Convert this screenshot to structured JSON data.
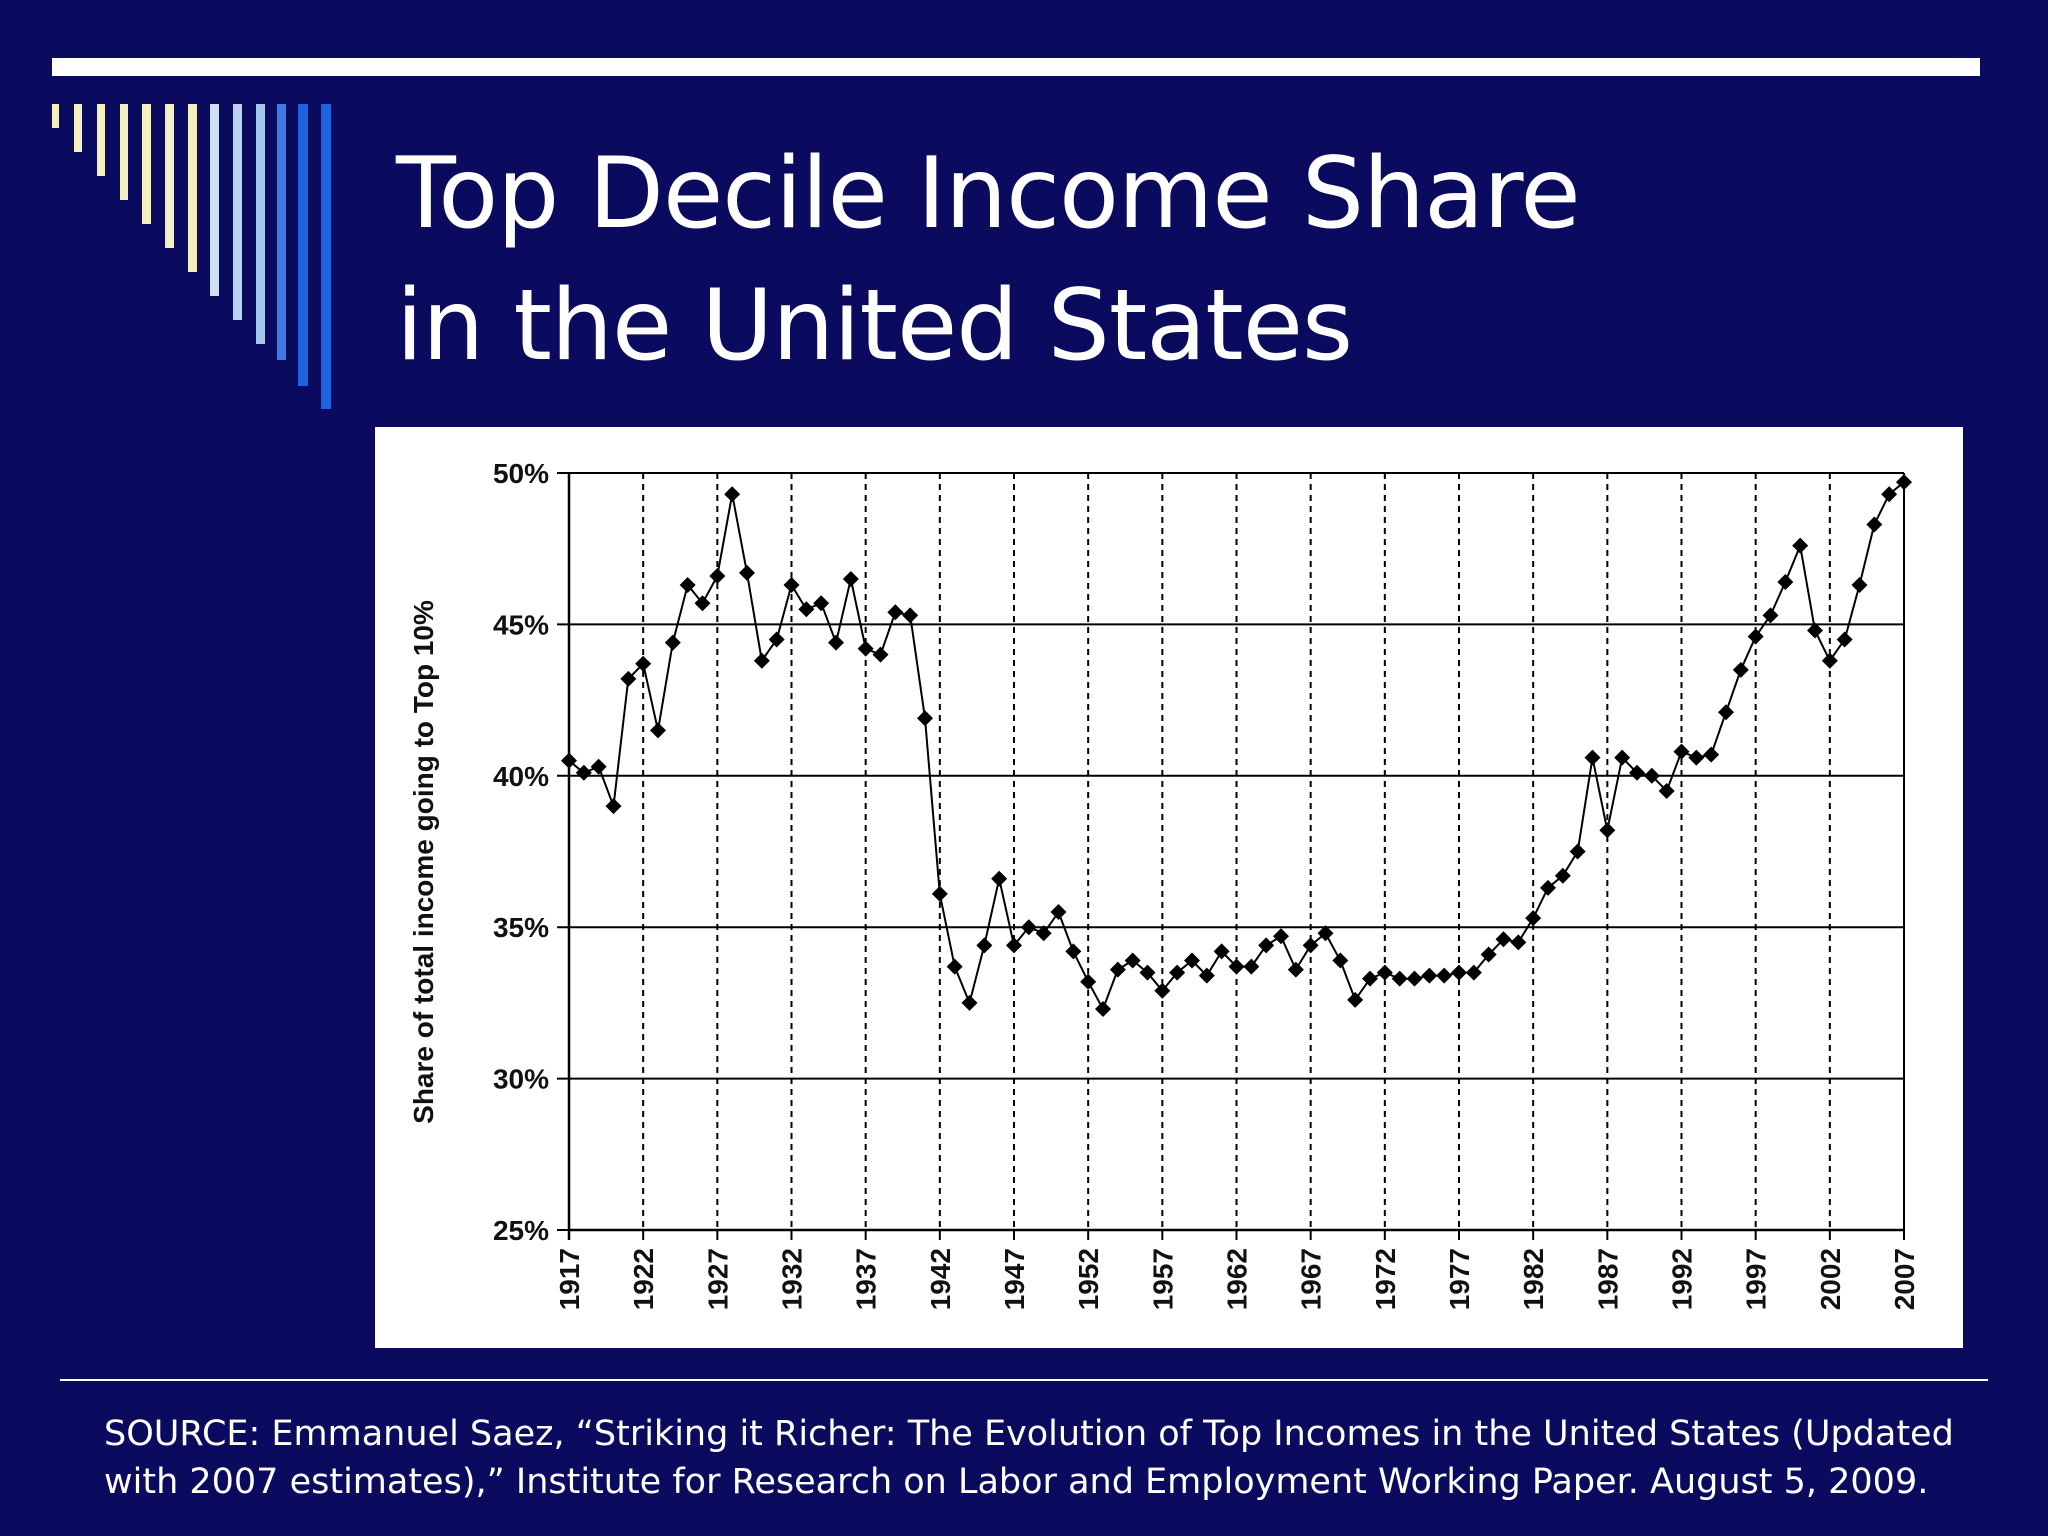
{
  "slide": {
    "background": "#0a0a5e",
    "title_line1": "Top Decile Income Share",
    "title_line2": "in the United States",
    "source": "SOURCE: Emmanuel Saez, “Striking it Richer: The Evolution of Top Incomes in the United States (Updated with 2007 estimates),” Institute for Research on Labor and Employment Working Paper. August 5, 2009."
  },
  "chart_data": {
    "type": "line",
    "title": "",
    "xlabel": "",
    "ylabel": "Share of total income going to Top 10%",
    "ylim": [
      25,
      50
    ],
    "xlim": [
      1917,
      2007
    ],
    "y_ticks": [
      {
        "value": 25,
        "label": "25%"
      },
      {
        "value": 30,
        "label": "30%"
      },
      {
        "value": 35,
        "label": "35%"
      },
      {
        "value": 40,
        "label": "40%"
      },
      {
        "value": 45,
        "label": "45%"
      },
      {
        "value": 50,
        "label": "50%"
      }
    ],
    "x_ticks": [
      "1917",
      "1922",
      "1927",
      "1932",
      "1937",
      "1942",
      "1947",
      "1952",
      "1957",
      "1962",
      "1967",
      "1972",
      "1977",
      "1982",
      "1987",
      "1992",
      "1997",
      "2002",
      "2007"
    ],
    "grid": "horizontal solid, vertical dashed",
    "legend": "none",
    "series_color": "#000000",
    "marker": "diamond",
    "x": [
      1917,
      1918,
      1919,
      1920,
      1921,
      1922,
      1923,
      1924,
      1925,
      1926,
      1927,
      1928,
      1929,
      1930,
      1931,
      1932,
      1933,
      1934,
      1935,
      1936,
      1937,
      1938,
      1939,
      1940,
      1941,
      1942,
      1943,
      1944,
      1945,
      1946,
      1947,
      1948,
      1949,
      1950,
      1951,
      1952,
      1953,
      1954,
      1955,
      1956,
      1957,
      1958,
      1959,
      1960,
      1961,
      1962,
      1963,
      1964,
      1965,
      1966,
      1967,
      1968,
      1969,
      1970,
      1971,
      1972,
      1973,
      1974,
      1975,
      1976,
      1977,
      1978,
      1979,
      1980,
      1981,
      1982,
      1983,
      1984,
      1985,
      1986,
      1987,
      1988,
      1989,
      1990,
      1991,
      1992,
      1993,
      1994,
      1995,
      1996,
      1997,
      1998,
      1999,
      2000,
      2001,
      2002,
      2003,
      2004,
      2005,
      2006,
      2007
    ],
    "y": [
      40.5,
      40.1,
      40.3,
      39.0,
      43.2,
      43.7,
      41.5,
      44.4,
      46.3,
      45.7,
      46.6,
      49.3,
      46.7,
      43.8,
      44.5,
      46.3,
      45.5,
      45.7,
      44.4,
      46.5,
      44.2,
      44.0,
      45.4,
      45.3,
      41.9,
      36.1,
      33.7,
      32.5,
      34.4,
      36.6,
      34.4,
      35.0,
      34.8,
      35.5,
      34.2,
      33.2,
      32.3,
      33.6,
      33.9,
      33.5,
      32.9,
      33.5,
      33.9,
      33.4,
      34.2,
      33.7,
      33.7,
      34.4,
      34.7,
      33.6,
      34.4,
      34.8,
      33.9,
      32.6,
      33.3,
      33.5,
      33.3,
      33.3,
      33.4,
      33.4,
      33.5,
      33.5,
      34.1,
      34.6,
      34.5,
      35.3,
      36.3,
      36.7,
      37.5,
      40.6,
      38.2,
      40.6,
      40.1,
      40.0,
      39.5,
      40.8,
      40.6,
      40.7,
      42.1,
      43.5,
      44.6,
      45.3,
      46.4,
      47.6,
      44.8,
      43.8,
      44.5,
      46.3,
      48.3,
      49.3,
      49.7
    ]
  }
}
